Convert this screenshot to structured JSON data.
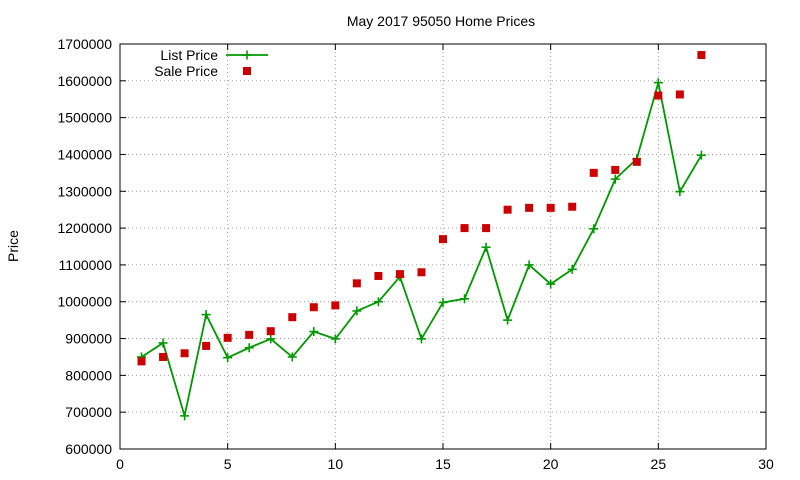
{
  "chart_data": {
    "type": "line",
    "title": "May 2017 95050 Home Prices",
    "xlabel": "",
    "ylabel": "Price",
    "xlim": [
      0,
      30
    ],
    "ylim": [
      600000,
      1700000
    ],
    "xticks": [
      0,
      5,
      10,
      15,
      20,
      25,
      30
    ],
    "yticks": [
      600000,
      700000,
      800000,
      900000,
      1000000,
      1100000,
      1200000,
      1300000,
      1400000,
      1500000,
      1600000,
      1700000
    ],
    "grid": true,
    "legend_position": "top-left",
    "x": [
      1,
      2,
      3,
      4,
      5,
      6,
      7,
      8,
      9,
      10,
      11,
      12,
      13,
      14,
      15,
      16,
      17,
      18,
      19,
      20,
      21,
      22,
      23,
      24,
      25,
      26,
      27
    ],
    "series": [
      {
        "name": "List Price",
        "style": "linespoints",
        "marker": "plus",
        "color": "#009900",
        "values": [
          850000,
          888000,
          690000,
          965000,
          848000,
          875000,
          899000,
          850000,
          919000,
          899000,
          975000,
          1000000,
          1068000,
          899000,
          998000,
          1008000,
          1148000,
          950000,
          1100000,
          1048000,
          1088000,
          1198000,
          1333000,
          1388000,
          1595000,
          1299000,
          1398000
        ]
      },
      {
        "name": "Sale Price",
        "style": "points",
        "marker": "square",
        "color": "#cc0000",
        "values": [
          838000,
          850000,
          860000,
          880000,
          902000,
          910000,
          920000,
          958000,
          985000,
          990000,
          1050000,
          1070000,
          1075000,
          1080000,
          1170000,
          1200000,
          1200000,
          1250000,
          1255000,
          1255000,
          1258000,
          1350000,
          1358000,
          1380000,
          1560000,
          1563000,
          1670000
        ]
      }
    ]
  }
}
